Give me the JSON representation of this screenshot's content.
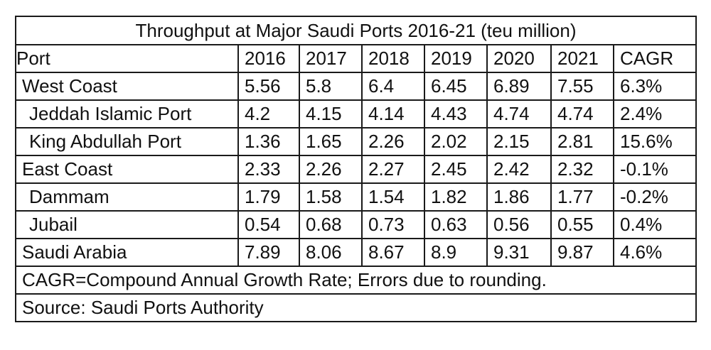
{
  "table": {
    "title": "Throughput at Major Saudi Ports 2016-21 (teu million)",
    "headers": [
      "Port",
      "2016",
      "2017",
      "2018",
      "2019",
      "2020",
      "2021",
      "CAGR"
    ],
    "rows": [
      {
        "port": "West Coast",
        "indent": false,
        "values": [
          "5.56",
          "5.8",
          "6.4",
          "6.45",
          "6.89",
          "7.55",
          "6.3%"
        ]
      },
      {
        "port": "Jeddah Islamic Port",
        "indent": true,
        "values": [
          "4.2",
          "4.15",
          "4.14",
          "4.43",
          "4.74",
          "4.74",
          "2.4%"
        ]
      },
      {
        "port": "King Abdullah Port",
        "indent": true,
        "values": [
          "1.36",
          "1.65",
          "2.26",
          "2.02",
          "2.15",
          "2.81",
          "15.6%"
        ]
      },
      {
        "port": "East Coast",
        "indent": false,
        "values": [
          "2.33",
          "2.26",
          "2.27",
          "2.45",
          "2.42",
          "2.32",
          "-0.1%"
        ]
      },
      {
        "port": "Dammam",
        "indent": true,
        "values": [
          "1.79",
          "1.58",
          "1.54",
          "1.82",
          "1.86",
          "1.77",
          "-0.2%"
        ]
      },
      {
        "port": "Jubail",
        "indent": true,
        "values": [
          "0.54",
          "0.68",
          "0.73",
          "0.63",
          "0.56",
          "0.55",
          "0.4%"
        ]
      },
      {
        "port": "Saudi Arabia",
        "indent": false,
        "values": [
          "7.89",
          "8.06",
          "8.67",
          "8.9",
          "9.31",
          "9.87",
          "4.6%"
        ]
      }
    ],
    "note": "CAGR=Compound Annual Growth Rate; Errors due to rounding.",
    "source": "Source: Saudi Ports Authority"
  }
}
